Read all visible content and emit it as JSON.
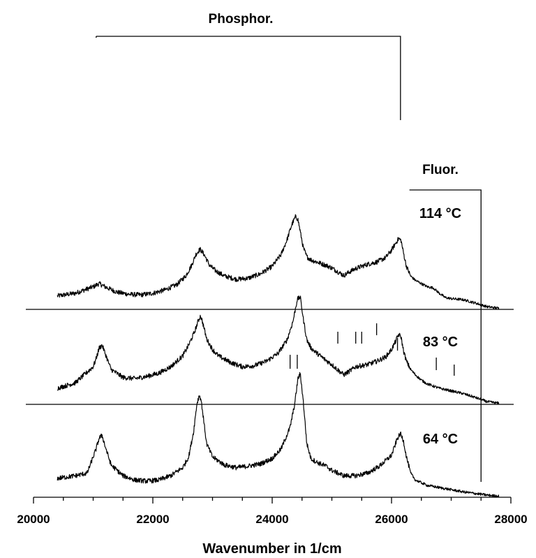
{
  "chart_data": {
    "type": "line",
    "title": "",
    "xlabel": "Wavenumber in 1/cm",
    "ylabel": "",
    "xlim": [
      20000,
      28000
    ],
    "xticks": [
      20000,
      22000,
      24000,
      26000,
      28000
    ],
    "annotations": {
      "phosphorescence": "Phosphor.",
      "fluorescence": "Fluor."
    },
    "series": [
      {
        "name": "114 °C",
        "x": [
          20400,
          20700,
          21000,
          21100,
          21200,
          21400,
          21600,
          21800,
          22000,
          22200,
          22400,
          22550,
          22650,
          22720,
          22790,
          22860,
          22950,
          23050,
          23200,
          23400,
          23600,
          23800,
          24000,
          24150,
          24250,
          24330,
          24390,
          24430,
          24470,
          24520,
          24580,
          24650,
          24750,
          24900,
          25000,
          25100,
          25200,
          25300,
          25400,
          25500,
          25600,
          25750,
          25900,
          26000,
          26080,
          26120,
          26160,
          26200,
          26250,
          26320,
          26400,
          26500,
          26600,
          26700,
          26800,
          26900,
          27000,
          27200,
          27400,
          27600,
          27800
        ],
        "y": [
          0.25,
          0.3,
          0.42,
          0.48,
          0.42,
          0.32,
          0.28,
          0.27,
          0.3,
          0.36,
          0.46,
          0.62,
          0.82,
          1.02,
          1.12,
          1.02,
          0.82,
          0.72,
          0.62,
          0.56,
          0.58,
          0.66,
          0.8,
          1.02,
          1.3,
          1.58,
          1.72,
          1.68,
          1.45,
          1.15,
          0.98,
          0.92,
          0.88,
          0.82,
          0.77,
          0.7,
          0.63,
          0.7,
          0.76,
          0.8,
          0.84,
          0.88,
          0.96,
          1.1,
          1.25,
          1.32,
          1.28,
          1.05,
          0.8,
          0.62,
          0.54,
          0.48,
          0.42,
          0.4,
          0.3,
          0.22,
          0.2,
          0.18,
          0.12,
          0.05,
          0.02
        ]
      },
      {
        "name": "83 °C",
        "x": [
          20400,
          20700,
          21000,
          21050,
          21100,
          21150,
          21200,
          21300,
          21500,
          21700,
          21900,
          22100,
          22300,
          22500,
          22600,
          22700,
          22760,
          22800,
          22840,
          22900,
          23000,
          23100,
          23300,
          23500,
          23700,
          23900,
          24100,
          24250,
          24350,
          24420,
          24470,
          24520,
          24580,
          24650,
          24750,
          24900,
          25000,
          25100,
          25200,
          25300,
          25400,
          25500,
          25600,
          25750,
          25900,
          26000,
          26080,
          26120,
          26160,
          26200,
          26250,
          26320,
          26400,
          26500,
          26600,
          26700,
          26800,
          27000,
          27200,
          27400,
          27600,
          27800
        ],
        "y": [
          0.3,
          0.4,
          0.7,
          0.85,
          1.05,
          1.1,
          0.95,
          0.65,
          0.5,
          0.48,
          0.52,
          0.58,
          0.7,
          0.9,
          1.1,
          1.35,
          1.55,
          1.65,
          1.5,
          1.22,
          1.02,
          0.9,
          0.78,
          0.7,
          0.72,
          0.8,
          0.95,
          1.2,
          1.55,
          1.95,
          2.0,
          1.6,
          1.2,
          1.05,
          0.95,
          0.82,
          0.74,
          0.64,
          0.55,
          0.62,
          0.7,
          0.72,
          0.74,
          0.8,
          0.88,
          1.02,
          1.2,
          1.3,
          1.25,
          1.0,
          0.8,
          0.65,
          0.55,
          0.45,
          0.38,
          0.34,
          0.3,
          0.25,
          0.2,
          0.13,
          0.05,
          0.02
        ]
      },
      {
        "name": "64 °C",
        "x": [
          20400,
          20700,
          20900,
          21000,
          21050,
          21100,
          21150,
          21200,
          21300,
          21500,
          21700,
          21900,
          22100,
          22300,
          22500,
          22600,
          22680,
          22740,
          22780,
          22810,
          22850,
          22900,
          23000,
          23200,
          23400,
          23600,
          23800,
          24000,
          24150,
          24300,
          24380,
          24430,
          24470,
          24520,
          24580,
          24650,
          24750,
          24900,
          25000,
          25200,
          25400,
          25600,
          25800,
          26000,
          26100,
          26150,
          26200,
          26250,
          26320,
          26400,
          26600,
          26800,
          27000,
          27200,
          27400,
          27600,
          27800
        ],
        "y": [
          0.35,
          0.4,
          0.45,
          0.75,
          0.9,
          1.1,
          1.15,
          0.95,
          0.6,
          0.4,
          0.32,
          0.3,
          0.32,
          0.4,
          0.55,
          0.75,
          1.2,
          1.75,
          1.9,
          1.8,
          1.45,
          1.0,
          0.75,
          0.6,
          0.55,
          0.58,
          0.62,
          0.72,
          0.9,
          1.3,
          1.75,
          2.2,
          2.3,
          1.8,
          1.0,
          0.72,
          0.65,
          0.58,
          0.5,
          0.4,
          0.4,
          0.45,
          0.58,
          0.78,
          1.1,
          1.18,
          1.05,
          0.75,
          0.45,
          0.32,
          0.22,
          0.18,
          0.14,
          0.1,
          0.07,
          0.04,
          0.02
        ]
      }
    ],
    "vertical_marks": [
      25100,
      25400,
      25500,
      25750,
      26100,
      26750,
      27050
    ]
  }
}
